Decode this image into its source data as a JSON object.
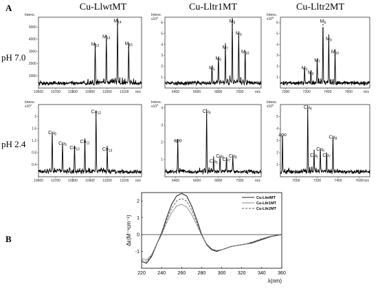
{
  "figure": {
    "label_a": "A",
    "label_b": "B",
    "columns": [
      "Cu-LlwtMT",
      "Cu-Lltr1MT",
      "Cu-Lltr2MT"
    ],
    "rows": [
      "pH 7.0",
      "pH 2.4"
    ],
    "intens_label": "Intens.",
    "mz_label": "m/z",
    "colors": {
      "spectrum": "#000000",
      "axis": "#333333"
    }
  },
  "chart_data": [
    {
      "type": "line",
      "id": "wt_ph7",
      "title": "Cu-LlwtMT",
      "row": "pH 7.0",
      "xlabel": "m/z",
      "ylabel": "Intens.",
      "xlim": [
        10600,
        11200
      ],
      "ylim": [
        0,
        5800
      ],
      "x_ticks": [
        10600,
        10700,
        10800,
        10900,
        11000,
        11100
      ],
      "y_ticks": [
        1000,
        2000,
        3000,
        4000,
        5000
      ],
      "y_scale_label": "",
      "peaks": [
        {
          "label": "M12",
          "x": 10930,
          "y": 3300
        },
        {
          "label": "M13",
          "x": 10995,
          "y": 3900
        },
        {
          "label": "M14",
          "x": 11060,
          "y": 5200
        },
        {
          "label": "M15",
          "x": 11125,
          "y": 3350
        }
      ]
    },
    {
      "type": "line",
      "id": "tr1_ph7",
      "title": "Cu-Lltr1MT",
      "row": "pH 7.0",
      "xlabel": "m/z",
      "ylabel": "Intens.",
      "xlim": [
        6300,
        7200
      ],
      "ylim": [
        0,
        6.5
      ],
      "x_ticks": [
        6400,
        6600,
        6800,
        7000
      ],
      "y_ticks": [
        1,
        2,
        3,
        4,
        5,
        6
      ],
      "y_scale_label": "x10^4",
      "peaks": [
        {
          "label": "M5",
          "x": 6740,
          "y": 1.5
        },
        {
          "label": "M6",
          "x": 6800,
          "y": 2.4
        },
        {
          "label": "M7",
          "x": 6865,
          "y": 3.4
        },
        {
          "label": "M8",
          "x": 6930,
          "y": 5.8
        },
        {
          "label": "M9",
          "x": 6990,
          "y": 4.7
        },
        {
          "label": "M10",
          "x": 7050,
          "y": 3.0
        }
      ]
    },
    {
      "type": "line",
      "id": "tr2_ph7",
      "title": "Cu-Lltr2MT",
      "row": "pH 7.0",
      "xlabel": "m/z",
      "ylabel": "Intens.",
      "xlim": [
        6950,
        7800
      ],
      "ylim": [
        0,
        6.5
      ],
      "x_ticks": [
        7000,
        7200,
        7400,
        7600
      ],
      "y_ticks": [
        1,
        2,
        3,
        4,
        5,
        6
      ],
      "y_scale_label": "x10^5",
      "peaks": [
        {
          "label": "M5",
          "x": 7180,
          "y": 1.5
        },
        {
          "label": "M6",
          "x": 7240,
          "y": 1.1
        },
        {
          "label": "M7",
          "x": 7300,
          "y": 2.2
        },
        {
          "label": "M8",
          "x": 7355,
          "y": 5.8
        },
        {
          "label": "M9",
          "x": 7410,
          "y": 4.2
        },
        {
          "label": "M10",
          "x": 7470,
          "y": 3.0
        }
      ]
    },
    {
      "type": "line",
      "id": "wt_ph24",
      "title": "Cu-LlwtMT",
      "row": "pH 2.4",
      "xlabel": "m/z",
      "ylabel": "Intens.",
      "xlim": [
        10600,
        11200
      ],
      "ylim": [
        0,
        2.4
      ],
      "x_ticks": [
        10600,
        10700,
        10800,
        10900,
        11000,
        11100
      ],
      "y_ticks": [
        0.4,
        0.8,
        1.2,
        1.6,
        2.0
      ],
      "y_scale_label": "x10^4",
      "peaks": [
        {
          "label": "Cu8",
          "x": 10680,
          "y": 1.35
        },
        {
          "label": "Cu9",
          "x": 10740,
          "y": 1.0
        },
        {
          "label": "Cu10",
          "x": 10810,
          "y": 0.85
        },
        {
          "label": "Cu11",
          "x": 10870,
          "y": 1.05
        },
        {
          "label": "Cu12",
          "x": 10935,
          "y": 2.05
        },
        {
          "label": "Cu13",
          "x": 11000,
          "y": 0.8
        }
      ]
    },
    {
      "type": "line",
      "id": "tr1_ph24",
      "title": "Cu-Lltr1MT",
      "row": "pH 2.4",
      "xlabel": "m/z",
      "ylabel": "Intens.",
      "xlim": [
        6300,
        7200
      ],
      "ylim": [
        0,
        4.2
      ],
      "x_ticks": [
        6400,
        6600,
        6800,
        7000
      ],
      "y_ticks": [
        1,
        2,
        3,
        4
      ],
      "y_scale_label": "x10^5",
      "peaks": [
        {
          "label": "apo",
          "x": 6420,
          "y": 1.9
        },
        {
          "label": "Cu4",
          "x": 6690,
          "y": 3.6
        },
        {
          "label": "Cu5",
          "x": 6755,
          "y": 0.7
        },
        {
          "label": "Cu6",
          "x": 6815,
          "y": 1.0
        },
        {
          "label": "Cu7",
          "x": 6875,
          "y": 0.8
        },
        {
          "label": "Cu8",
          "x": 6935,
          "y": 1.0
        }
      ]
    },
    {
      "type": "line",
      "id": "tr2_ph24",
      "title": "Cu-Lltr2MT",
      "row": "pH 2.4",
      "xlabel": "m/z",
      "ylabel": "Intens.",
      "xlim": [
        6850,
        7700
      ],
      "ylim": [
        0,
        6.0
      ],
      "x_ticks": [
        7000,
        7200,
        7400,
        7600
      ],
      "y_ticks": [
        1,
        2,
        3,
        4,
        5
      ],
      "y_scale_label": "x10^5",
      "peaks": [
        {
          "label": "apo",
          "x": 6870,
          "y": 3.2
        },
        {
          "label": "Cu4",
          "x": 7110,
          "y": 5.5
        },
        {
          "label": "Cu5",
          "x": 7170,
          "y": 1.5
        },
        {
          "label": "Cu6",
          "x": 7230,
          "y": 2.0
        },
        {
          "label": "Cu7",
          "x": 7290,
          "y": 1.5
        },
        {
          "label": "Cu8",
          "x": 7350,
          "y": 3.0
        }
      ]
    },
    {
      "type": "line",
      "id": "cd",
      "xlabel": "λ(nm)",
      "ylabel": "Δε(M⁻¹cm⁻¹)",
      "xlim": [
        220,
        360
      ],
      "ylim": [
        -2,
        2.5
      ],
      "x_ticks": [
        220,
        240,
        260,
        280,
        300,
        320,
        340,
        360
      ],
      "y_ticks": [
        -1,
        0,
        1,
        2
      ],
      "grid": false,
      "legend_position": "top-right",
      "series": [
        {
          "name": "Cu-LlwtMT",
          "x": [
            220,
            225,
            230,
            235,
            240,
            245,
            250,
            255,
            260,
            265,
            270,
            275,
            280,
            285,
            290,
            295,
            300,
            305,
            310,
            315,
            320,
            325,
            330,
            335,
            340,
            345,
            350,
            355,
            360
          ],
          "y": [
            -1.6,
            -1.7,
            -1.3,
            -0.6,
            0.1,
            1.0,
            1.8,
            2.3,
            2.45,
            2.3,
            1.7,
            0.9,
            0.0,
            -0.6,
            -0.9,
            -1.0,
            -0.9,
            -0.8,
            -0.7,
            -0.65,
            -0.6,
            -0.55,
            -0.5,
            -0.4,
            -0.3,
            -0.2,
            -0.1,
            -0.05,
            0.0
          ]
        },
        {
          "name": "Cu-Lltr1MT",
          "x": [
            220,
            225,
            230,
            235,
            240,
            245,
            250,
            255,
            260,
            265,
            270,
            275,
            280,
            285,
            290,
            295,
            300,
            305,
            310,
            315,
            320,
            325,
            330,
            335,
            340,
            345,
            350,
            355,
            360
          ],
          "y": [
            -1.4,
            -1.5,
            -1.2,
            -0.6,
            0.0,
            0.7,
            1.3,
            1.7,
            1.8,
            1.65,
            1.2,
            0.6,
            -0.05,
            -0.55,
            -0.85,
            -0.95,
            -0.9,
            -0.8,
            -0.7,
            -0.65,
            -0.6,
            -0.55,
            -0.45,
            -0.35,
            -0.25,
            -0.15,
            -0.08,
            -0.03,
            0.0
          ]
        },
        {
          "name": "Cu-Lltr2MT",
          "x": [
            220,
            225,
            230,
            235,
            240,
            245,
            250,
            255,
            260,
            265,
            270,
            275,
            280,
            285,
            290,
            295,
            300,
            305,
            310,
            315,
            320,
            325,
            330,
            335,
            340,
            345,
            350,
            355,
            360
          ],
          "y": [
            -1.5,
            -1.6,
            -1.25,
            -0.55,
            0.05,
            0.85,
            1.55,
            2.0,
            2.15,
            2.0,
            1.45,
            0.75,
            0.0,
            -0.6,
            -0.85,
            -0.95,
            -0.9,
            -0.8,
            -0.7,
            -0.65,
            -0.6,
            -0.55,
            -0.45,
            -0.35,
            -0.25,
            -0.18,
            -0.1,
            -0.04,
            0.0
          ]
        }
      ]
    }
  ]
}
